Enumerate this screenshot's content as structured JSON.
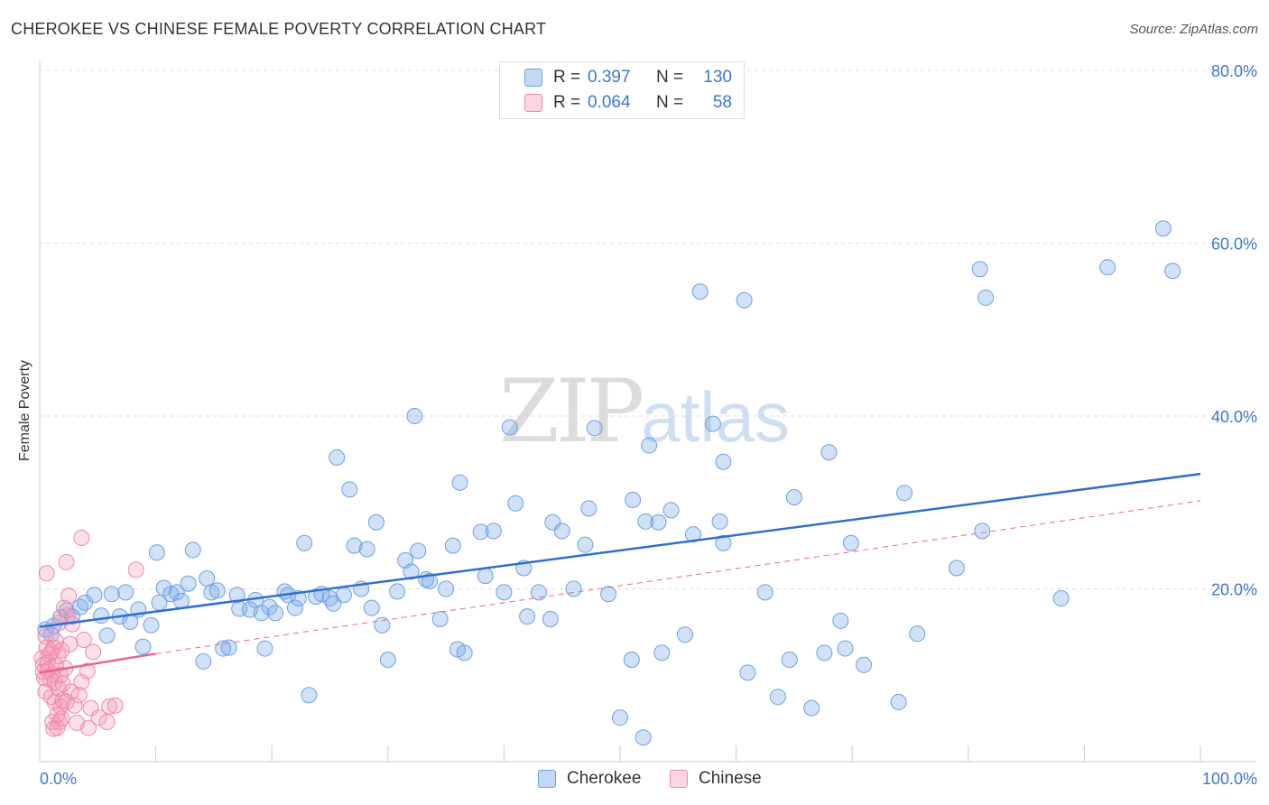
{
  "title": "CHEROKEE VS CHINESE FEMALE POVERTY CORRELATION CHART",
  "source": "Source: ZipAtlas.com",
  "watermark": {
    "zip": "ZIP",
    "atlas": "atlas"
  },
  "colors": {
    "cherokee_fill": "rgba(120,170,235,0.35)",
    "cherokee_stroke": "#6fa0e0",
    "cherokee_line": "#2f6fd0",
    "chinese_fill": "rgba(245,150,180,0.30)",
    "chinese_stroke": "#ee8aab",
    "chinese_line": "#e8648e",
    "tick_label": "#3a78cc",
    "grid": "#dddddd"
  },
  "legend": {
    "rows": [
      {
        "r_label": "R =",
        "r_value": "0.397",
        "n_label": "N =",
        "n_value": "130"
      },
      {
        "r_label": "R =",
        "r_value": "0.064",
        "n_label": "N =",
        "n_value": "58"
      }
    ]
  },
  "chart_data": {
    "type": "scatter",
    "title": "CHEROKEE VS CHINESE FEMALE POVERTY CORRELATION CHART",
    "xlabel": "",
    "ylabel": "Female Poverty",
    "xlim": [
      0,
      100
    ],
    "ylim": [
      0,
      85
    ],
    "x_tick_labels": [
      "0.0%",
      "100.0%"
    ],
    "y_ticks": [
      20,
      40,
      60,
      80
    ],
    "y_tick_labels": [
      "20.0%",
      "40.0%",
      "60.0%",
      "80.0%"
    ],
    "grid": true,
    "legend_position": "top-center",
    "series": [
      {
        "name": "Cherokee",
        "r": 0.397,
        "n": 130,
        "trend": {
          "x": [
            0,
            100
          ],
          "y": [
            15.6,
            33.3
          ]
        },
        "points": [
          [
            0.5,
            15.3
          ],
          [
            1.0,
            14.7
          ],
          [
            1.2,
            15.7
          ],
          [
            1.8,
            16.7
          ],
          [
            2.3,
            17.5
          ],
          [
            2.8,
            16.8
          ],
          [
            3.5,
            17.9
          ],
          [
            3.9,
            18.4
          ],
          [
            4.7,
            19.3
          ],
          [
            5.3,
            16.9
          ],
          [
            5.8,
            14.6
          ],
          [
            6.2,
            19.4
          ],
          [
            6.9,
            16.8
          ],
          [
            7.4,
            19.6
          ],
          [
            7.8,
            16.2
          ],
          [
            8.5,
            17.6
          ],
          [
            8.9,
            13.3
          ],
          [
            9.6,
            15.8
          ],
          [
            10.1,
            24.2
          ],
          [
            10.3,
            18.4
          ],
          [
            10.7,
            20.1
          ],
          [
            11.3,
            19.4
          ],
          [
            11.8,
            19.6
          ],
          [
            12.2,
            18.6
          ],
          [
            12.8,
            20.6
          ],
          [
            13.2,
            24.5
          ],
          [
            14.1,
            11.6
          ],
          [
            14.4,
            21.2
          ],
          [
            14.8,
            19.6
          ],
          [
            15.3,
            19.8
          ],
          [
            15.8,
            13.1
          ],
          [
            16.3,
            13.2
          ],
          [
            17.0,
            19.3
          ],
          [
            17.2,
            17.7
          ],
          [
            18.1,
            17.6
          ],
          [
            18.6,
            18.7
          ],
          [
            19.1,
            17.2
          ],
          [
            19.4,
            13.1
          ],
          [
            19.8,
            17.9
          ],
          [
            20.3,
            17.2
          ],
          [
            21.1,
            19.7
          ],
          [
            21.4,
            19.3
          ],
          [
            22.0,
            17.8
          ],
          [
            22.3,
            18.9
          ],
          [
            22.8,
            25.3
          ],
          [
            23.2,
            7.7
          ],
          [
            23.8,
            19.1
          ],
          [
            24.3,
            19.4
          ],
          [
            25.0,
            18.9
          ],
          [
            25.3,
            18.3
          ],
          [
            25.6,
            35.2
          ],
          [
            26.2,
            19.3
          ],
          [
            26.7,
            31.5
          ],
          [
            27.1,
            25.0
          ],
          [
            27.7,
            20.0
          ],
          [
            28.2,
            24.6
          ],
          [
            28.6,
            17.8
          ],
          [
            29.0,
            27.7
          ],
          [
            29.5,
            15.8
          ],
          [
            30.0,
            11.8
          ],
          [
            30.8,
            19.7
          ],
          [
            31.5,
            23.3
          ],
          [
            32.0,
            22.0
          ],
          [
            32.3,
            40.0
          ],
          [
            32.6,
            24.4
          ],
          [
            33.3,
            21.1
          ],
          [
            33.6,
            20.9
          ],
          [
            34.5,
            16.5
          ],
          [
            35.0,
            20.0
          ],
          [
            35.6,
            25.0
          ],
          [
            36.0,
            13.0
          ],
          [
            36.2,
            32.3
          ],
          [
            36.6,
            12.6
          ],
          [
            38.0,
            26.6
          ],
          [
            38.4,
            21.5
          ],
          [
            39.1,
            26.7
          ],
          [
            40.0,
            19.6
          ],
          [
            40.5,
            38.7
          ],
          [
            41.0,
            29.9
          ],
          [
            41.7,
            22.4
          ],
          [
            42.0,
            16.8
          ],
          [
            43.0,
            19.6
          ],
          [
            44.0,
            16.5
          ],
          [
            44.2,
            27.7
          ],
          [
            45.0,
            26.7
          ],
          [
            46.0,
            20.0
          ],
          [
            47.0,
            25.1
          ],
          [
            47.3,
            29.3
          ],
          [
            47.8,
            38.6
          ],
          [
            49.0,
            19.4
          ],
          [
            50.0,
            5.1
          ],
          [
            51.0,
            11.8
          ],
          [
            51.1,
            30.3
          ],
          [
            52.0,
            2.8
          ],
          [
            52.2,
            27.8
          ],
          [
            52.5,
            36.6
          ],
          [
            53.3,
            27.7
          ],
          [
            53.6,
            12.6
          ],
          [
            54.4,
            29.1
          ],
          [
            55.6,
            14.7
          ],
          [
            56.3,
            26.3
          ],
          [
            56.9,
            54.4
          ],
          [
            58.0,
            39.1
          ],
          [
            58.6,
            27.8
          ],
          [
            58.9,
            34.7
          ],
          [
            58.9,
            25.3
          ],
          [
            60.7,
            53.4
          ],
          [
            61.0,
            10.3
          ],
          [
            62.5,
            19.6
          ],
          [
            63.6,
            7.5
          ],
          [
            64.6,
            11.8
          ],
          [
            65.0,
            30.6
          ],
          [
            66.5,
            6.2
          ],
          [
            67.6,
            12.6
          ],
          [
            68.0,
            35.8
          ],
          [
            69.0,
            16.3
          ],
          [
            69.4,
            13.1
          ],
          [
            69.9,
            25.3
          ],
          [
            71.0,
            11.2
          ],
          [
            74.0,
            6.9
          ],
          [
            74.5,
            31.1
          ],
          [
            75.6,
            14.8
          ],
          [
            79.0,
            22.4
          ],
          [
            81.0,
            57.0
          ],
          [
            81.2,
            26.7
          ],
          [
            81.5,
            53.7
          ],
          [
            88.0,
            18.9
          ],
          [
            92.0,
            57.2
          ],
          [
            96.8,
            61.7
          ],
          [
            97.6,
            56.8
          ]
        ]
      },
      {
        "name": "Chinese",
        "r": 0.064,
        "n": 58,
        "trend_solid": {
          "x": [
            0,
            10
          ],
          "y": [
            10.3,
            12.5
          ]
        },
        "trend_dashed": {
          "x": [
            10,
            100
          ],
          "y": [
            12.5,
            30.2
          ]
        },
        "points": [
          [
            0.2,
            12.0
          ],
          [
            0.3,
            11.2
          ],
          [
            0.3,
            10.4
          ],
          [
            0.4,
            9.7
          ],
          [
            0.5,
            8.1
          ],
          [
            0.5,
            14.5
          ],
          [
            0.6,
            13.2
          ],
          [
            0.6,
            21.8
          ],
          [
            0.7,
            11.5
          ],
          [
            0.7,
            10.6
          ],
          [
            0.8,
            12.4
          ],
          [
            0.9,
            9.5
          ],
          [
            1.0,
            7.5
          ],
          [
            1.0,
            12.7
          ],
          [
            1.1,
            4.6
          ],
          [
            1.1,
            10.1
          ],
          [
            1.2,
            13.2
          ],
          [
            1.2,
            3.8
          ],
          [
            1.3,
            9.2
          ],
          [
            1.3,
            6.9
          ],
          [
            1.4,
            14.0
          ],
          [
            1.4,
            11.1
          ],
          [
            1.5,
            5.4
          ],
          [
            1.5,
            3.9
          ],
          [
            1.6,
            12.2
          ],
          [
            1.6,
            8.5
          ],
          [
            1.7,
            16.1
          ],
          [
            1.7,
            4.6
          ],
          [
            1.8,
            6.4
          ],
          [
            1.8,
            10.0
          ],
          [
            1.9,
            5.0
          ],
          [
            1.9,
            12.9
          ],
          [
            2.0,
            9.0
          ],
          [
            2.0,
            7.1
          ],
          [
            2.1,
            17.8
          ],
          [
            2.2,
            10.8
          ],
          [
            2.3,
            23.1
          ],
          [
            2.3,
            6.9
          ],
          [
            2.4,
            16.9
          ],
          [
            2.5,
            19.2
          ],
          [
            2.6,
            13.6
          ],
          [
            2.7,
            8.1
          ],
          [
            2.8,
            15.9
          ],
          [
            3.0,
            6.5
          ],
          [
            3.2,
            4.5
          ],
          [
            3.4,
            7.7
          ],
          [
            3.6,
            9.2
          ],
          [
            3.6,
            25.9
          ],
          [
            3.8,
            14.1
          ],
          [
            4.1,
            10.5
          ],
          [
            4.2,
            3.9
          ],
          [
            4.4,
            6.2
          ],
          [
            4.6,
            12.7
          ],
          [
            5.1,
            5.1
          ],
          [
            5.8,
            4.6
          ],
          [
            6.0,
            6.4
          ],
          [
            6.5,
            6.5
          ],
          [
            8.3,
            22.2
          ]
        ]
      }
    ]
  }
}
